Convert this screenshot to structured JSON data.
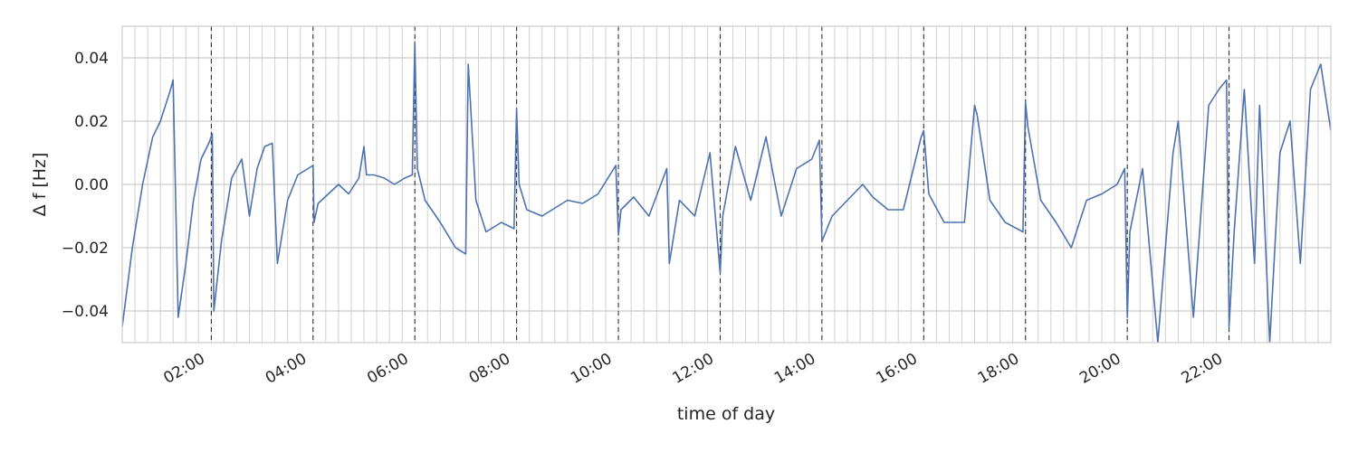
{
  "chart_data": {
    "type": "line",
    "xlabel": "time of day",
    "ylabel": "Δ f [Hz]",
    "xlim_hours": [
      0.25,
      24.0
    ],
    "ylim": [
      -0.05,
      0.05
    ],
    "yticks": [
      {
        "value": 0.04,
        "label": "0.04"
      },
      {
        "value": 0.02,
        "label": "0.02"
      },
      {
        "value": 0.0,
        "label": "0.00"
      },
      {
        "value": -0.02,
        "label": "−0.02"
      },
      {
        "value": -0.04,
        "label": "−0.04"
      }
    ],
    "xticks": [
      {
        "hour": 2,
        "label": "02:00"
      },
      {
        "hour": 4,
        "label": "04:00"
      },
      {
        "hour": 6,
        "label": "06:00"
      },
      {
        "hour": 8,
        "label": "08:00"
      },
      {
        "hour": 10,
        "label": "10:00"
      },
      {
        "hour": 12,
        "label": "12:00"
      },
      {
        "hour": 14,
        "label": "14:00"
      },
      {
        "hour": 16,
        "label": "16:00"
      },
      {
        "hour": 18,
        "label": "18:00"
      },
      {
        "hour": 20,
        "label": "20:00"
      },
      {
        "hour": 22,
        "label": "22:00"
      }
    ],
    "minor_grid_interval_minutes": 15,
    "dashed_vlines_hours": [
      2,
      4,
      6,
      8,
      10,
      12,
      14,
      16,
      18,
      20,
      22
    ],
    "grid": true,
    "line_color": "#4c72b0",
    "x_hours": [
      0.25,
      0.45,
      0.65,
      0.85,
      1.0,
      1.1,
      1.2,
      1.25,
      1.35,
      1.5,
      1.65,
      1.8,
      1.95,
      2.02,
      2.05,
      2.2,
      2.4,
      2.6,
      2.75,
      2.9,
      3.05,
      3.2,
      3.3,
      3.5,
      3.7,
      3.9,
      4.0,
      4.02,
      4.1,
      4.3,
      4.5,
      4.7,
      4.9,
      5.0,
      5.05,
      5.2,
      5.4,
      5.6,
      5.8,
      5.95,
      6.0,
      6.05,
      6.2,
      6.5,
      6.8,
      7.0,
      7.05,
      7.2,
      7.4,
      7.7,
      7.95,
      8.0,
      8.05,
      8.2,
      8.5,
      8.8,
      9.0,
      9.3,
      9.6,
      9.95,
      10.0,
      10.05,
      10.3,
      10.6,
      10.95,
      11.0,
      11.2,
      11.5,
      11.8,
      12.0,
      12.05,
      12.3,
      12.6,
      12.9,
      13.2,
      13.5,
      13.8,
      13.95,
      14.0,
      14.2,
      14.5,
      14.8,
      15.0,
      15.3,
      15.6,
      15.95,
      16.0,
      16.1,
      16.4,
      16.8,
      17.0,
      17.05,
      17.3,
      17.6,
      17.95,
      18.0,
      18.05,
      18.3,
      18.6,
      18.9,
      19.2,
      19.5,
      19.8,
      19.95,
      20.0,
      20.05,
      20.3,
      20.6,
      20.9,
      21.0,
      21.3,
      21.6,
      21.8,
      21.95,
      22.0,
      22.1,
      22.3,
      22.5,
      22.6,
      22.8,
      22.95,
      23.0,
      23.2,
      23.4,
      23.6,
      23.8,
      24.0
    ],
    "values": [
      -0.045,
      -0.02,
      0.0,
      0.015,
      0.02,
      0.025,
      0.03,
      0.033,
      -0.042,
      -0.025,
      -0.005,
      0.008,
      0.013,
      0.016,
      -0.04,
      -0.018,
      0.002,
      0.008,
      -0.01,
      0.005,
      0.012,
      0.013,
      -0.025,
      -0.005,
      0.003,
      0.005,
      0.006,
      -0.012,
      -0.006,
      -0.003,
      0.0,
      -0.003,
      0.002,
      0.012,
      0.003,
      0.003,
      0.002,
      0.0,
      0.002,
      0.003,
      0.045,
      0.005,
      -0.005,
      -0.012,
      -0.02,
      -0.022,
      0.038,
      -0.005,
      -0.015,
      -0.012,
      -0.014,
      0.024,
      0.0,
      -0.008,
      -0.01,
      -0.007,
      -0.005,
      -0.006,
      -0.003,
      0.006,
      -0.016,
      -0.008,
      -0.004,
      -0.01,
      0.005,
      -0.025,
      -0.005,
      -0.01,
      0.01,
      -0.028,
      -0.01,
      0.012,
      -0.005,
      0.015,
      -0.01,
      0.005,
      0.008,
      0.014,
      -0.018,
      -0.01,
      -0.005,
      0.0,
      -0.004,
      -0.008,
      -0.008,
      0.015,
      0.017,
      -0.003,
      -0.012,
      -0.012,
      0.025,
      0.022,
      -0.005,
      -0.012,
      -0.015,
      0.026,
      0.018,
      -0.005,
      -0.012,
      -0.02,
      -0.005,
      -0.003,
      0.0,
      0.005,
      -0.042,
      -0.015,
      0.005,
      -0.05,
      0.01,
      0.02,
      -0.042,
      0.025,
      0.03,
      0.033,
      -0.045,
      -0.015,
      0.03,
      -0.025,
      0.025,
      -0.05,
      -0.005,
      0.01,
      0.02,
      -0.025,
      0.03,
      0.038,
      0.017
    ]
  }
}
